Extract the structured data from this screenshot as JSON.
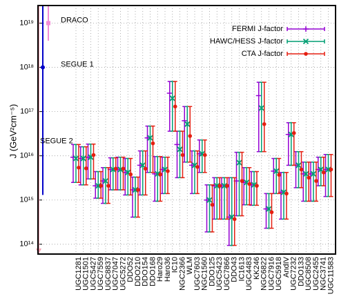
{
  "chart_data": {
    "type": "errorbar",
    "y_label": "J (GeV²cm⁻⁵)",
    "log_y": true,
    "grid": true,
    "legend": "upper right",
    "ylim": [
      60000000000000.0,
      2.5e+19
    ],
    "yticks": [
      {
        "value": 100000000000000.0,
        "label": "10¹⁴"
      },
      {
        "value": 1000000000000000.0,
        "label": "10¹⁵"
      },
      {
        "value": 1e+16,
        "label": "10¹⁶"
      },
      {
        "value": 1e+17,
        "label": "10¹⁷"
      },
      {
        "value": 1e+18,
        "label": "10¹⁸"
      },
      {
        "value": 1e+19,
        "label": "10¹⁹"
      }
    ],
    "categories": [
      "UGC1281",
      "UGC1501",
      "UGC5427",
      "UGC7559",
      "UGC8837",
      "UGC7047",
      "UGC5272",
      "DDO52",
      "DDO210",
      "DDO154",
      "DDO168",
      "Haro29",
      "Haro36",
      "IC10",
      "NGC2366",
      "WLM",
      "UGC7603",
      "NGC1560",
      "DDO125",
      "UGC5423",
      "UGC7866",
      "DDO43",
      "IC1613",
      "UGC4483",
      "KK246",
      "NGC6822",
      "UGC7916",
      "UGC5918",
      "AndIV",
      "UGC7232",
      "DDO133",
      "UGC8508",
      "UGC2455",
      "NGC3741",
      "UGC11583"
    ],
    "series": [
      {
        "name": "FERMI J-factor",
        "color": "#9400d3",
        "marker": "plus",
        "values": [
          9300000000000000.0,
          8700000000000000.0,
          9300000000000000.0,
          2100000000000000.0,
          2700000000000000.0,
          4900000000000000.0,
          4900000000000000.0,
          4200000000000000.0,
          1700000000000000.0,
          6100000000000000.0,
          2.54e+16,
          3900000000000000.0,
          4900000000000000.0,
          2.6e+17,
          1.8e+16,
          6.2e+16,
          6100000000000000.0,
          1.11e+16,
          1000000000000000.0,
          2100000000000000.0,
          2100000000000000.0,
          410000000000000.0,
          2700000000000000.0,
          2500000000000000.0,
          2200000000000000.0,
          2.3e+17,
          630000000000000.0,
          4500000000000000.0,
          1500000000000000.0,
          3.04e+16,
          6100000000000000.0,
          3900000000000000.0,
          3900000000000000.0,
          4900000000000000.0,
          4900000000000000.0
        ],
        "lower": [
          2500000000000000.0,
          2200000000000000.0,
          3000000000000000.0,
          1100000000000000.0,
          840000000000000.0,
          1700000000000000.0,
          1700000000000000.0,
          1300000000000000.0,
          410000000000000.0,
          1300000000000000.0,
          4200000000000000.0,
          940000000000000.0,
          1400000000000000.0,
          3.6e+16,
          3200000000000000.0,
          7200000000000000.0,
          1400000000000000.0,
          4200000000000000.0,
          190000000000000.0,
          370000000000000.0,
          370000000000000.0,
          94000000000000.0,
          440000000000000.0,
          780000000000000.0,
          760000000000000.0,
          1.24e+16,
          230000000000000.0,
          1400000000000000.0,
          370000000000000.0,
          6100000000000000.0,
          1900000000000000.0,
          940000000000000.0,
          940000000000000.0,
          2100000000000000.0,
          1200000000000000.0
        ],
        "upper": [
          1.8e+16,
          1.6e+16,
          1.84e+16,
          4400000000000000.0,
          5400000000000000.0,
          9000000000000000.0,
          9300000000000000.0,
          8700000000000000.0,
          3300000000000000.0,
          1.29e+16,
          4.7e+16,
          9600000000000000.0,
          9300000000000000.0,
          4.8e+17,
          3.6e+16,
          1.3e+17,
          1.29e+16,
          2.28e+16,
          2200000000000000.0,
          3200000000000000.0,
          3200000000000000.0,
          3200000000000000.0,
          1.2e+16,
          5400000000000000.0,
          4400000000000000.0,
          4.6e+17,
          1400000000000000.0,
          8700000000000000.0,
          4200000000000000.0,
          5.6e+16,
          1.24e+16,
          7200000000000000.0,
          7200000000000000.0,
          9300000000000000.0,
          1.07e+16
        ]
      },
      {
        "name": "HAWC/HESS J-factor",
        "color": "#009e73",
        "marker": "cross",
        "values": [
          8700000000000000.0,
          8700000000000000.0,
          9300000000000000.0,
          2100000000000000.0,
          2700000000000000.0,
          4900000000000000.0,
          4900000000000000.0,
          4200000000000000.0,
          1700000000000000.0,
          6100000000000000.0,
          2.54e+16,
          3900000000000000.0,
          4900000000000000.0,
          2e+17,
          1.4e+16,
          5.2e+16,
          6100000000000000.0,
          1.11e+16,
          1000000000000000.0,
          2100000000000000.0,
          2100000000000000.0,
          410000000000000.0,
          7000000000000000.0,
          2500000000000000.0,
          2200000000000000.0,
          1.2e+17,
          630000000000000.0,
          4500000000000000.0,
          1500000000000000.0,
          3.04e+16,
          6100000000000000.0,
          3900000000000000.0,
          3900000000000000.0,
          4900000000000000.0,
          4900000000000000.0
        ],
        "lower": [
          2500000000000000.0,
          2200000000000000.0,
          3000000000000000.0,
          1100000000000000.0,
          840000000000000.0,
          1700000000000000.0,
          1700000000000000.0,
          1300000000000000.0,
          410000000000000.0,
          1300000000000000.0,
          4200000000000000.0,
          940000000000000.0,
          1400000000000000.0,
          3.6e+16,
          3200000000000000.0,
          7200000000000000.0,
          1400000000000000.0,
          4200000000000000.0,
          190000000000000.0,
          370000000000000.0,
          370000000000000.0,
          94000000000000.0,
          440000000000000.0,
          780000000000000.0,
          760000000000000.0,
          1.24e+16,
          230000000000000.0,
          1400000000000000.0,
          370000000000000.0,
          6100000000000000.0,
          1900000000000000.0,
          940000000000000.0,
          940000000000000.0,
          2100000000000000.0,
          1200000000000000.0
        ],
        "upper": [
          1.8e+16,
          1.6e+16,
          1.84e+16,
          4400000000000000.0,
          5400000000000000.0,
          9000000000000000.0,
          9300000000000000.0,
          8700000000000000.0,
          3300000000000000.0,
          1.29e+16,
          4.7e+16,
          9600000000000000.0,
          9300000000000000.0,
          4.8e+17,
          3.6e+16,
          1.3e+17,
          1.29e+16,
          2.28e+16,
          2200000000000000.0,
          3200000000000000.0,
          3200000000000000.0,
          3200000000000000.0,
          1.2e+16,
          5400000000000000.0,
          4400000000000000.0,
          4.6e+17,
          1400000000000000.0,
          8700000000000000.0,
          4200000000000000.0,
          5.6e+16,
          1.24e+16,
          7200000000000000.0,
          7200000000000000.0,
          9300000000000000.0,
          1.07e+16
        ]
      },
      {
        "name": "CTA J-factor",
        "color": "#e51e10",
        "marker": "dot",
        "values": [
          5400000000000000.0,
          5200000000000000.0,
          1.04e+16,
          2100000000000000.0,
          2100000000000000.0,
          5100000000000000.0,
          5100000000000000.0,
          3800000000000000.0,
          1700000000000000.0,
          5100000000000000.0,
          1.91e+16,
          3800000000000000.0,
          4500000000000000.0,
          1.3e+17,
          1.04e+16,
          2.8e+16,
          5600000000000000.0,
          1.04e+16,
          780000000000000.0,
          2100000000000000.0,
          2100000000000000.0,
          370000000000000.0,
          2700000000000000.0,
          2300000000000000.0,
          2100000000000000.0,
          5.2e+16,
          530000000000000.0,
          3700000000000000.0,
          1400000000000000.0,
          3.27e+16,
          4900000000000000.0,
          3200000000000000.0,
          2700000000000000.0,
          4200000000000000.0,
          4900000000000000.0
        ],
        "lower": [
          2500000000000000.0,
          2200000000000000.0,
          3000000000000000.0,
          1100000000000000.0,
          840000000000000.0,
          1700000000000000.0,
          1700000000000000.0,
          1300000000000000.0,
          410000000000000.0,
          1300000000000000.0,
          4200000000000000.0,
          940000000000000.0,
          1400000000000000.0,
          3.6e+16,
          3200000000000000.0,
          7200000000000000.0,
          1400000000000000.0,
          4200000000000000.0,
          190000000000000.0,
          370000000000000.0,
          370000000000000.0,
          94000000000000.0,
          440000000000000.0,
          780000000000000.0,
          760000000000000.0,
          1.24e+16,
          230000000000000.0,
          1400000000000000.0,
          370000000000000.0,
          6100000000000000.0,
          1900000000000000.0,
          940000000000000.0,
          940000000000000.0,
          2100000000000000.0,
          1200000000000000.0
        ],
        "upper": [
          1.8e+16,
          1.6e+16,
          1.84e+16,
          4400000000000000.0,
          5400000000000000.0,
          9000000000000000.0,
          9300000000000000.0,
          8700000000000000.0,
          3300000000000000.0,
          1.29e+16,
          4.7e+16,
          9600000000000000.0,
          9300000000000000.0,
          4.8e+17,
          3.6e+16,
          1.3e+17,
          1.29e+16,
          2.28e+16,
          2200000000000000.0,
          3200000000000000.0,
          3200000000000000.0,
          3200000000000000.0,
          1.2e+16,
          5400000000000000.0,
          4400000000000000.0,
          4.6e+17,
          1400000000000000.0,
          8700000000000000.0,
          4200000000000000.0,
          5.6e+16,
          1.24e+16,
          7200000000000000.0,
          7200000000000000.0,
          9300000000000000.0,
          1.07e+16
        ]
      }
    ],
    "dwarfs": [
      {
        "name": "DRACO",
        "color": "#f28cd6",
        "value": 1e+19,
        "lower": 4e+18,
        "upper": 2.5e+19
      },
      {
        "name": "SEGUE 1",
        "color": "#0000c8",
        "value": 1e+18,
        "lower": 1300000000000000.0,
        "upper": 2.5e+19
      },
      {
        "name": "SEGUE 2",
        "color": "#f4a0b0",
        "value": 1.5e+16,
        "lower": 60000000000000.0,
        "upper": 2.5e+19
      }
    ]
  }
}
